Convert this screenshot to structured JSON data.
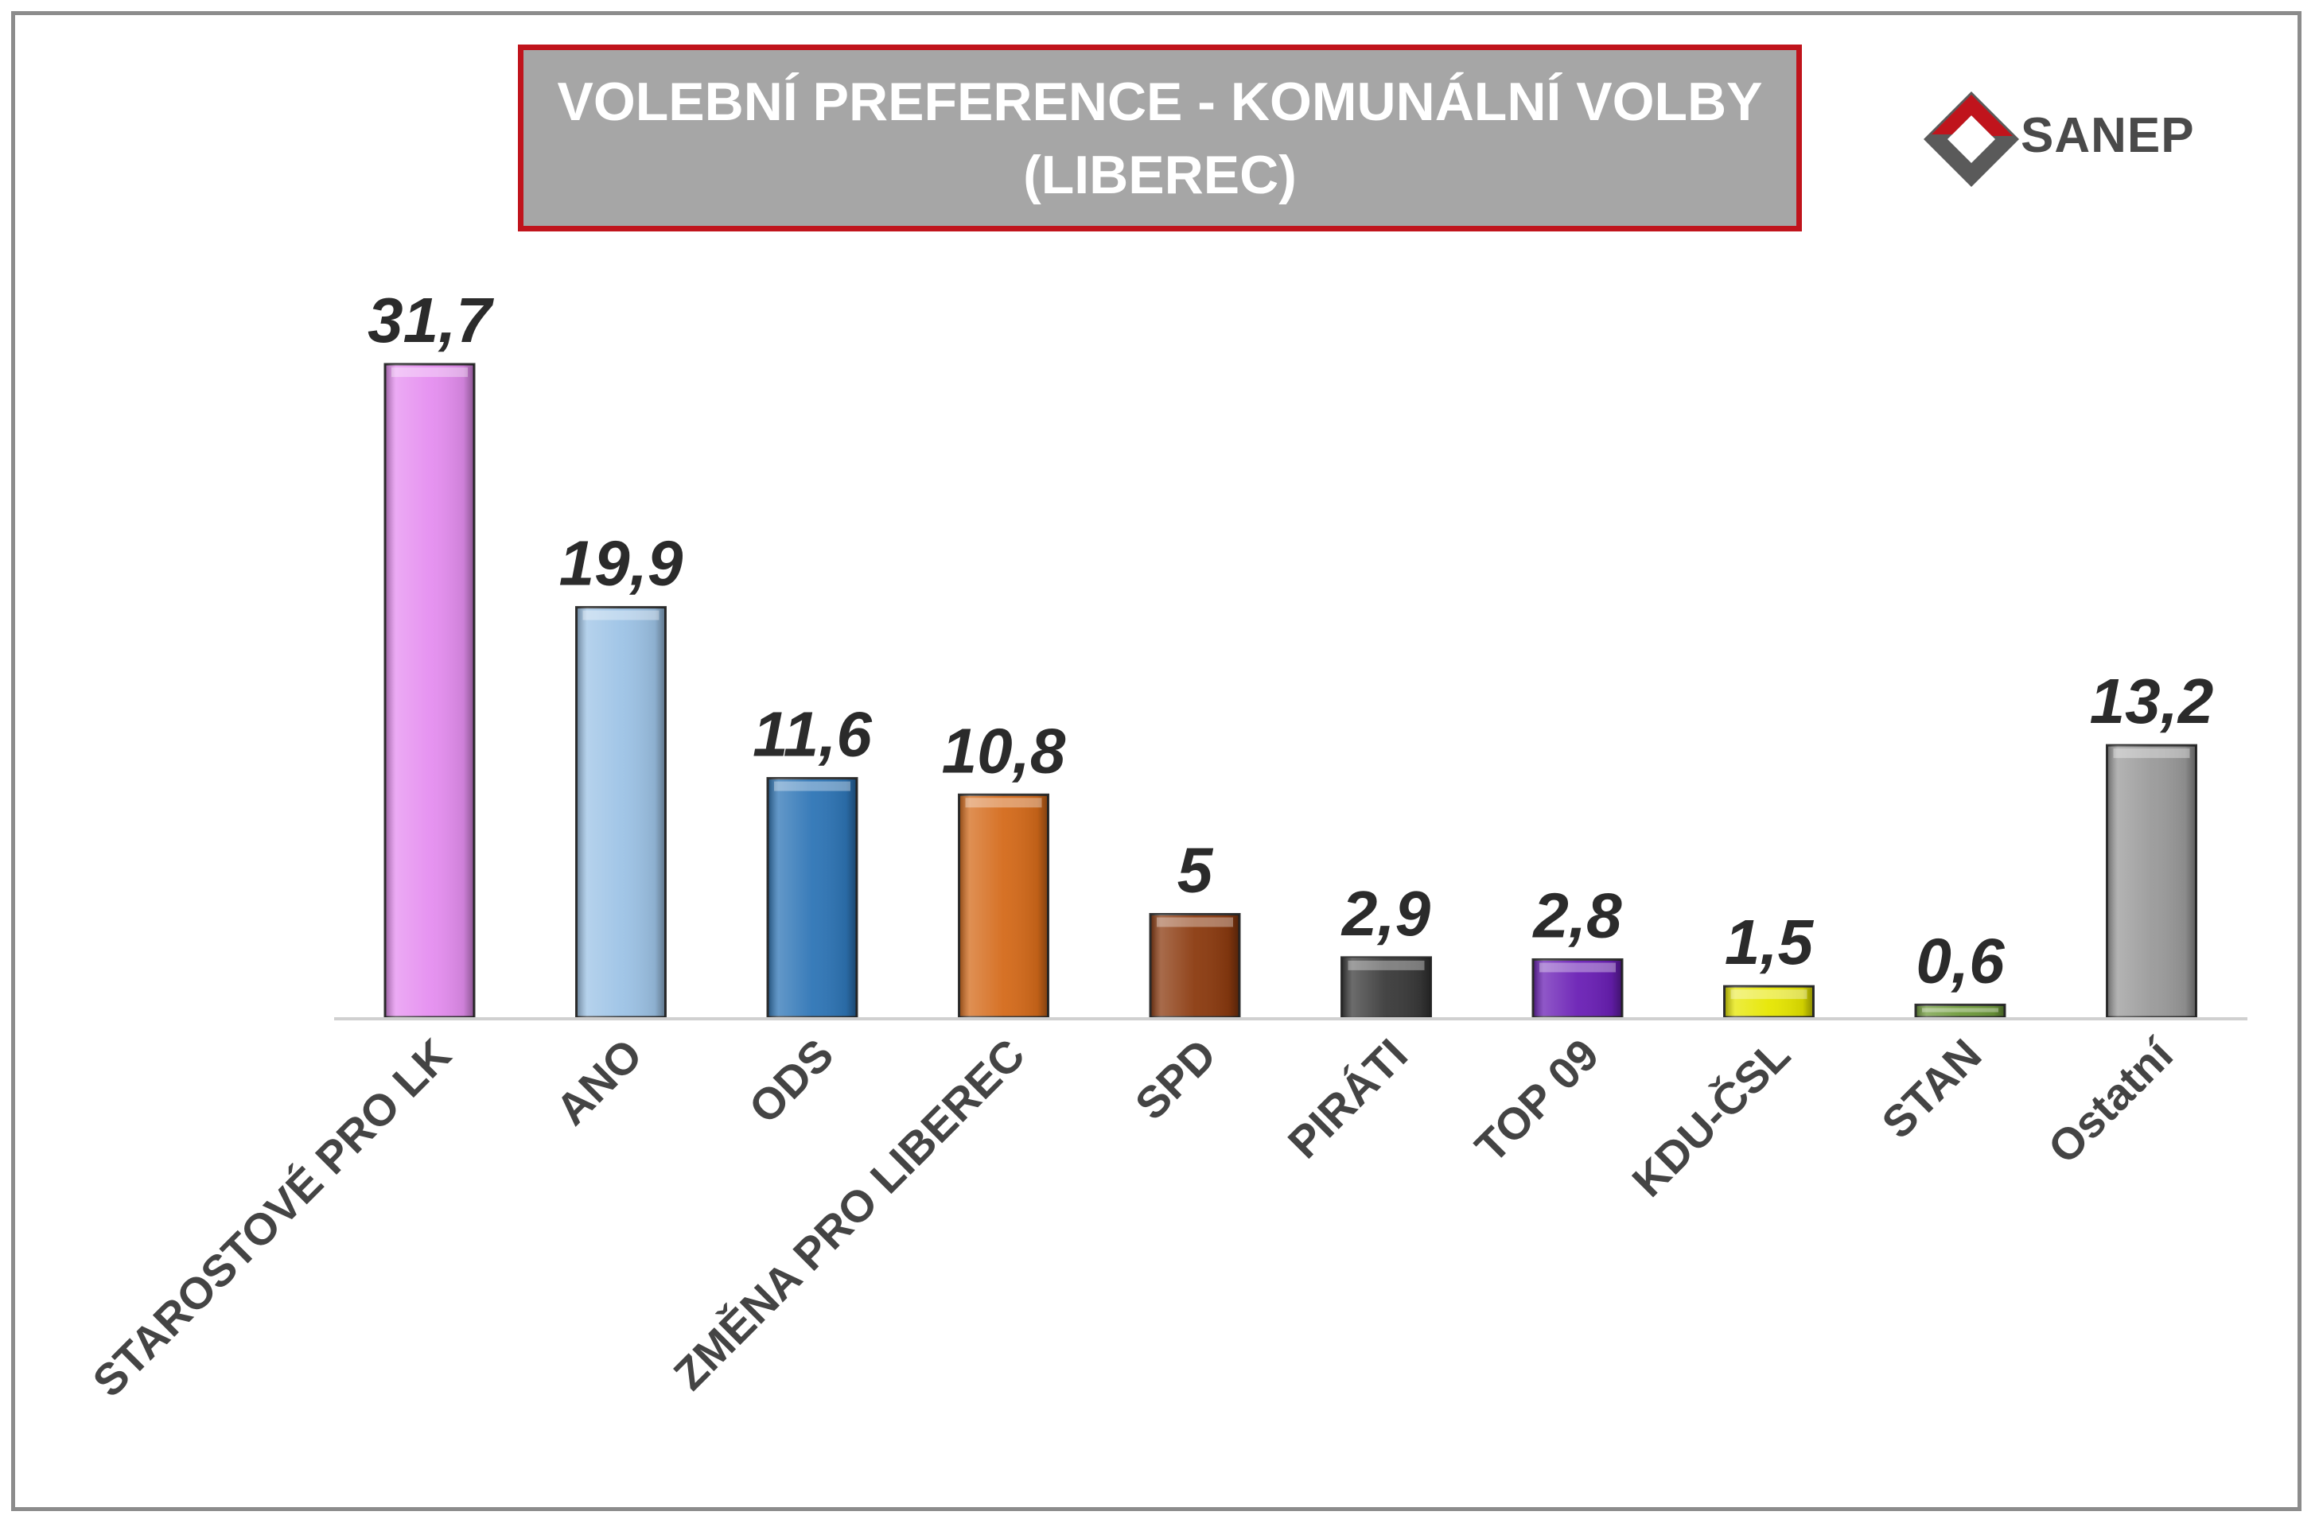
{
  "chart_data": {
    "type": "bar",
    "title_lines": [
      "VOLEBNÍ PREFERENCE - KOMUNÁLNÍ VOLBY",
      "(LIBEREC)"
    ],
    "categories": [
      "STAROSTOVÉ PRO LK",
      "ANO",
      "ODS",
      "ZMĚNA PRO LIBEREC",
      "SPD",
      "PIRÁTI",
      "TOP 09",
      "KDU-ČSL",
      "STAN",
      "Ostatní"
    ],
    "values": [
      31.7,
      19.9,
      11.6,
      10.8,
      5,
      2.9,
      2.8,
      1.5,
      0.6,
      13.2
    ],
    "value_labels": [
      "31,7",
      "19,9",
      "11,6",
      "10,8",
      "5",
      "2,9",
      "2,8",
      "1,5",
      "0,6",
      "13,2"
    ],
    "colors": [
      "#e58ef0",
      "#9dc3e6",
      "#2e75b6",
      "#d46a1a",
      "#8b3a0f",
      "#3a3a3a",
      "#6a1fb5",
      "#e6e600",
      "#6e9a3a",
      "#9a9a9a"
    ],
    "ylim": [
      0,
      32
    ],
    "grid": false,
    "legend": "none"
  },
  "logo": {
    "text": "SANEP",
    "icon": "sanep-logo-icon"
  }
}
